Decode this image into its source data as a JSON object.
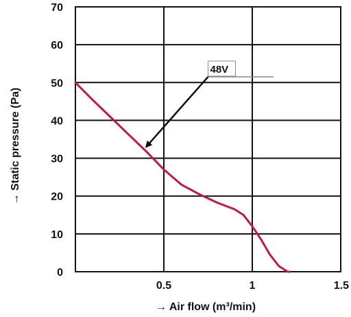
{
  "chart_data": {
    "type": "line",
    "title": "",
    "xlabel": "→ Air flow (m³/min)",
    "ylabel": "→ Static pressure (Pa)",
    "xlim": [
      0,
      1.5
    ],
    "ylim": [
      0,
      70
    ],
    "x_ticks": [
      {
        "value": 0.5,
        "label": "0.5"
      },
      {
        "value": 1,
        "label": "1"
      },
      {
        "value": 1.5,
        "label": "1.5"
      }
    ],
    "y_ticks": [
      {
        "value": 0,
        "label": "0"
      },
      {
        "value": 10,
        "label": "10"
      },
      {
        "value": 20,
        "label": "20"
      },
      {
        "value": 30,
        "label": "30"
      },
      {
        "value": 40,
        "label": "40"
      },
      {
        "value": 50,
        "label": "50"
      },
      {
        "value": 60,
        "label": "60"
      },
      {
        "value": 70,
        "label": "70"
      }
    ],
    "grid": true,
    "vertical_gridlines": [
      0.5,
      1
    ],
    "series": [
      {
        "name": "48V",
        "color": "#c8173a",
        "x": [
          0,
          0.1,
          0.2,
          0.3,
          0.4,
          0.5,
          0.6,
          0.7,
          0.8,
          0.9,
          0.95,
          1.0,
          1.05,
          1.1,
          1.15,
          1.2,
          1.21
        ],
        "y": [
          50,
          45.3,
          40.8,
          36.3,
          31.8,
          27.0,
          23.0,
          20.5,
          18.3,
          16.5,
          15.0,
          12.0,
          8.5,
          4.5,
          1.5,
          0,
          0
        ]
      }
    ],
    "annotation": {
      "text": "48V",
      "arrow_from": [
        0.75,
        51.5
      ],
      "arrow_to": [
        0.4,
        33.0
      ],
      "leader_end": [
        1.12,
        51.5
      ]
    }
  }
}
